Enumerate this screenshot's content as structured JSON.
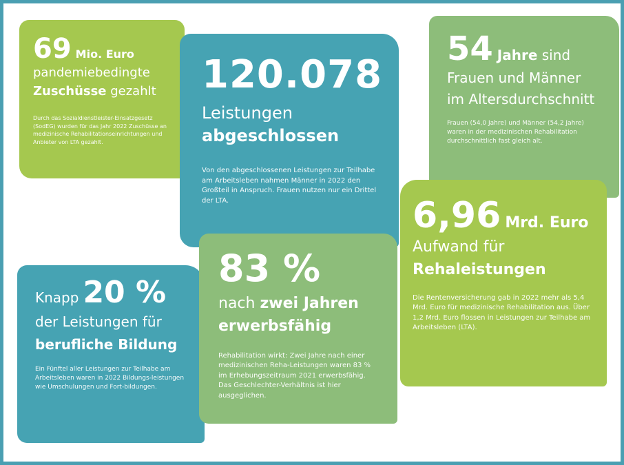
{
  "colors": {
    "frame": "#4a9fb2",
    "lime": "#a5c84f",
    "teal": "#46a3b3",
    "sage": "#8dbd7a",
    "text": "#ffffff"
  },
  "cards": [
    {
      "id": "pandemie",
      "big": "69",
      "unit": "Mio. Euro",
      "line1": "pandemiebedingte",
      "line2_bold": "Zuschüsse",
      "line2_rest": " gezahlt",
      "body": "Durch das Sozialdienstleister-Einsatzgesetz (SodEG) wurden für das Jahr 2022 Zuschüsse an medizinische Rehabilitationseinrichtungen und Anbieter von LTA gezahlt."
    },
    {
      "id": "leistungen",
      "big": "120.078",
      "line1": "Leistungen",
      "line2_bold": "abgeschlossen",
      "body": "Von den abgeschlossenen Leistungen zur Teilhabe am Arbeitsleben nahmen Männer in 2022 den Großteil in Anspruch. Frauen nutzen nur ein Drittel der LTA."
    },
    {
      "id": "alter",
      "big": "54",
      "unit": "Jahre",
      "unit_rest": " sind",
      "line1": "Frauen und Männer",
      "line2": "im Altersdurchschnitt",
      "body": "Frauen (54,0 Jahre) und Männer (54,2 Jahre) waren in der medizinischen Rehabilitation durchschnittlich fast gleich alt."
    },
    {
      "id": "aufwand",
      "big": "6,96",
      "unit": "Mrd. Euro",
      "line1": "Aufwand für",
      "line2_bold": "Rehaleistungen",
      "body": "Die Rentenversicherung gab in 2022 mehr als 5,4 Mrd. Euro für medizinische Rehabilitation aus. Über 1,2 Mrd. Euro flossen in Leistungen zur Teilhabe am Arbeitsleben (LTA)."
    },
    {
      "id": "bildung",
      "pre": "Knapp",
      "big": "20 %",
      "line1": "der Leistungen für",
      "line2_bold": "berufliche Bildung",
      "body": "Ein Fünftel aller Leistungen zur Teilhabe am Arbeitsleben waren in 2022 Bildungs-leistungen wie Umschulungen und Fort-bildungen."
    },
    {
      "id": "erwerbsfaehig",
      "big": "83 %",
      "line1_pre": "nach ",
      "line1_bold": "zwei Jahren",
      "line2_bold": "erwerbsfähig",
      "body": "Rehabilitation wirkt: Zwei Jahre nach einer medizinischen Reha-Leistungen waren 83 % im Erhebungszeitraum 2021 erwerbsfähig. Das Geschlechter-Verhältnis ist hier ausgeglichen."
    }
  ]
}
